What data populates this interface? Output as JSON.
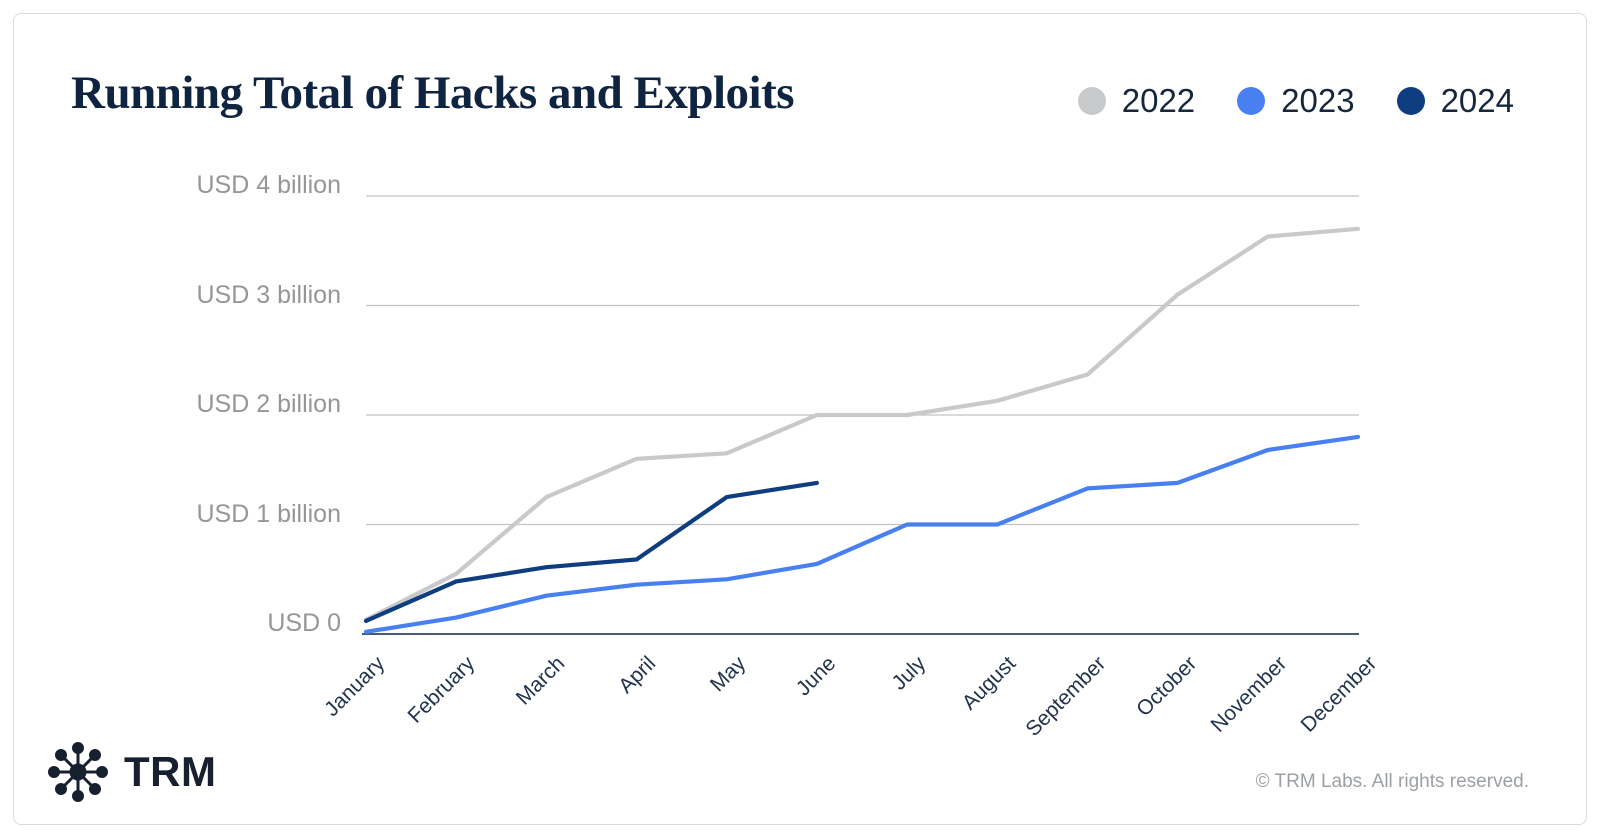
{
  "header": {
    "title": "Running Total of Hacks and Exploits"
  },
  "chart_data": {
    "type": "line",
    "title": "Running Total of Hacks and Exploits",
    "unit": "USD billions",
    "grid": "horizontal",
    "legend_position": "top-right",
    "ylim": [
      0,
      4
    ],
    "categories": [
      "January",
      "February",
      "March",
      "April",
      "May",
      "June",
      "July",
      "August",
      "September",
      "October",
      "November",
      "December"
    ],
    "y_ticks": [
      {
        "value": 0,
        "label": "USD 0"
      },
      {
        "value": 1,
        "label": "USD 1 billion"
      },
      {
        "value": 2,
        "label": "USD 2 billion"
      },
      {
        "value": 3,
        "label": "USD 3 billion"
      },
      {
        "value": 4,
        "label": "USD 4 billion"
      }
    ],
    "series": [
      {
        "name": "2022",
        "color": "#c8c9cb",
        "values": [
          0.13,
          0.55,
          1.25,
          1.6,
          1.65,
          2.0,
          2.0,
          2.13,
          2.37,
          3.1,
          3.63,
          3.7
        ]
      },
      {
        "name": "2023",
        "color": "#4880f0",
        "values": [
          0.02,
          0.15,
          0.35,
          0.45,
          0.5,
          0.64,
          1.0,
          1.0,
          1.33,
          1.38,
          1.68,
          1.8
        ]
      },
      {
        "name": "2024",
        "color": "#0e3d80",
        "values": [
          0.12,
          0.48,
          0.61,
          0.68,
          1.25,
          1.38
        ]
      }
    ]
  },
  "footer": {
    "logo_text": "TRM",
    "copyright": "© TRM Labs. All rights reserved."
  }
}
